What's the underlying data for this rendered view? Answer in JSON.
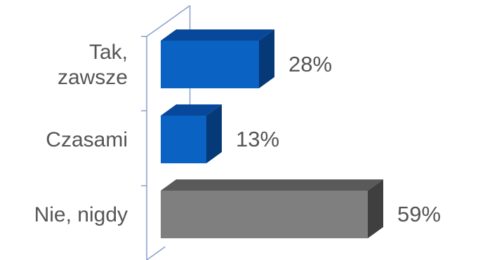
{
  "chart_data": {
    "type": "bar",
    "orientation": "horizontal",
    "style": "3d",
    "title": "",
    "xlabel": "",
    "ylabel": "",
    "xlim": [
      0,
      65
    ],
    "grid": false,
    "legend": "none",
    "categories": [
      [
        "Tak,",
        "zawsze"
      ],
      [
        "Czasami"
      ],
      [
        "Nie, nigdy"
      ]
    ],
    "values": [
      28,
      13,
      59
    ],
    "data_labels": [
      "28%",
      "13%",
      "59%"
    ],
    "colors": {
      "bar_front": [
        "#0a62c3",
        "#0a62c3",
        "#7f7f7f"
      ],
      "bar_top": [
        "#08489a",
        "#08489a",
        "#5a5a5a"
      ],
      "bar_side": [
        "#053978",
        "#053978",
        "#3f3f3f"
      ],
      "axis": "#8a9fcc",
      "text": "#555555"
    }
  }
}
